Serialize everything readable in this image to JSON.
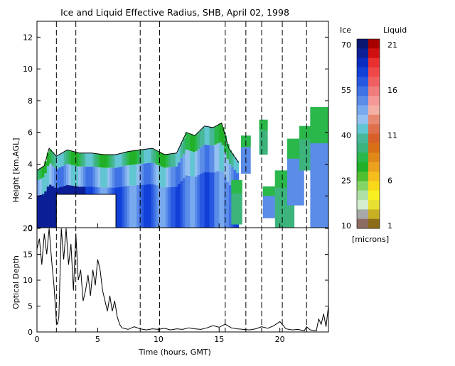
{
  "chart_data": [
    {
      "type": "heatmap",
      "title": "Ice and Liquid Effective Radius, SHB, April 02, 1998",
      "ylabel": "Height [km,AGL]",
      "xlim": [
        0,
        24
      ],
      "ylim": [
        0,
        13
      ],
      "yticks": [
        0,
        2,
        4,
        6,
        8,
        10,
        12
      ],
      "xticks": [
        0,
        5,
        10,
        15,
        20
      ],
      "vertical_markers_hours": [
        1.6,
        3.2,
        8.5,
        10.1,
        15.5,
        17.2,
        18.5,
        20.2,
        22.2
      ],
      "no_data_box": {
        "x": [
          1.6,
          6.5
        ],
        "y": [
          0,
          2.1
        ]
      },
      "cloud_top_km": [
        [
          0.0,
          3.6
        ],
        [
          0.6,
          3.9
        ],
        [
          1.0,
          5.0
        ],
        [
          1.6,
          4.5
        ],
        [
          2.5,
          4.9
        ],
        [
          3.5,
          4.7
        ],
        [
          4.5,
          4.7
        ],
        [
          5.5,
          4.6
        ],
        [
          6.5,
          4.6
        ],
        [
          7.5,
          4.8
        ],
        [
          8.5,
          4.9
        ],
        [
          9.5,
          5.0
        ],
        [
          10.5,
          4.6
        ],
        [
          11.5,
          4.7
        ],
        [
          12.3,
          6.0
        ],
        [
          13.0,
          5.8
        ],
        [
          13.8,
          6.4
        ],
        [
          14.5,
          6.3
        ],
        [
          15.2,
          6.6
        ],
        [
          15.8,
          5.0
        ],
        [
          16.6,
          4.1
        ]
      ],
      "colorbar": {
        "ice_label": "Ice",
        "liquid_label": "Liquid",
        "ice_ticks": [
          "70",
          "55",
          "40",
          "25",
          "10"
        ],
        "liquid_ticks": [
          "21",
          "16",
          "11",
          "6",
          "1"
        ],
        "units": "[microns]",
        "ice_colors": [
          "#0a1670",
          "#0c1f96",
          "#0b2cc0",
          "#1040d8",
          "#2858e0",
          "#3f72e4",
          "#5a8ce8",
          "#78a8ee",
          "#94c0f0",
          "#62c6d2",
          "#48b898",
          "#3cb47c",
          "#2ab84a",
          "#22b028",
          "#50c030",
          "#86d466",
          "#b0e0a8",
          "#d4ecd0",
          "#a8a8a8",
          "#8c6c60"
        ],
        "liquid_colors": [
          "#a80000",
          "#d01010",
          "#e83030",
          "#f04848",
          "#f06060",
          "#f07c7c",
          "#f49898",
          "#f4b0a4",
          "#e88870",
          "#e0704c",
          "#d86028",
          "#d87018",
          "#e08818",
          "#eca020",
          "#f4bc1c",
          "#f8d818",
          "#f8f020",
          "#e8e030",
          "#c8b024",
          "#8c6c18"
        ]
      }
    },
    {
      "type": "line",
      "ylabel": "Optical Depth",
      "xlabel": "Time (hours, GMT)",
      "xlim": [
        0,
        24
      ],
      "ylim": [
        0,
        20
      ],
      "yticks": [
        0,
        5,
        10,
        15,
        20
      ],
      "xticks": [
        0,
        5,
        10,
        15,
        20
      ],
      "x": [
        0.0,
        0.2,
        0.4,
        0.6,
        0.8,
        1.0,
        1.2,
        1.4,
        1.6,
        1.7,
        1.8,
        2.0,
        2.2,
        2.4,
        2.6,
        2.8,
        3.0,
        3.2,
        3.4,
        3.6,
        3.8,
        4.0,
        4.2,
        4.4,
        4.6,
        4.8,
        5.0,
        5.2,
        5.4,
        5.6,
        5.8,
        6.0,
        6.2,
        6.4,
        6.6,
        6.8,
        7.0,
        7.5,
        8.0,
        8.5,
        9.0,
        9.5,
        10.0,
        10.5,
        11.0,
        11.5,
        12.0,
        12.5,
        13.0,
        13.5,
        14.0,
        14.5,
        15.0,
        15.5,
        16.0,
        16.5,
        17.0,
        17.5,
        18.0,
        18.5,
        19.0,
        19.5,
        20.0,
        20.5,
        21.0,
        21.5,
        22.0,
        22.2,
        22.5,
        22.8,
        23.0,
        23.2,
        23.4,
        23.6,
        23.8,
        24.0
      ],
      "y": [
        16,
        18,
        13,
        19,
        15,
        20,
        14,
        9,
        2,
        1.5,
        3,
        20,
        14,
        20,
        13,
        17,
        8,
        19,
        10,
        12,
        6,
        8,
        11,
        7,
        12,
        9,
        14,
        12,
        8,
        6,
        4,
        7,
        4,
        6,
        3,
        1.5,
        0.8,
        0.5,
        1.0,
        0.6,
        0.4,
        0.6,
        0.5,
        0.7,
        0.4,
        0.6,
        0.5,
        0.8,
        0.6,
        0.5,
        0.8,
        1.2,
        0.9,
        1.5,
        0.8,
        0.6,
        0.5,
        0.4,
        0.6,
        1.0,
        0.7,
        1.2,
        2.0,
        0.6,
        0.4,
        0.5,
        0.2,
        1.0,
        0.4,
        0.3,
        0.2,
        2.5,
        1.5,
        3.5,
        1.0,
        5.0
      ]
    }
  ]
}
